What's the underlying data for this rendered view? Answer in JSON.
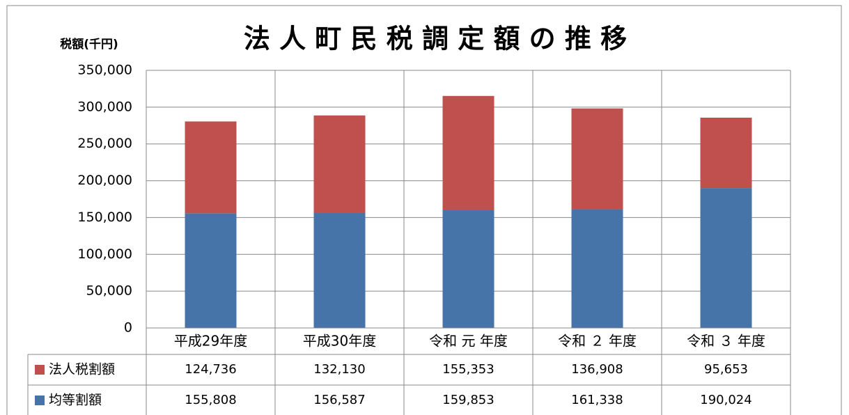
{
  "chart_data": {
    "type": "stacked_bar",
    "title": "法 人 町 民 税 調 定 額 の 推 移",
    "y_label": "税額(千円)",
    "categories": [
      "平成29年度",
      "平成30年度",
      "令和 元 年度",
      "令和 ２ 年度",
      "令和 ３ 年度"
    ],
    "series": [
      {
        "name": "均等割額",
        "color": "#4674a8",
        "values": [
          155808,
          156587,
          159853,
          161338,
          190024
        ],
        "value_labels": [
          "155,808",
          "156,587",
          "159,853",
          "161,338",
          "190,024"
        ]
      },
      {
        "name": "法人税割額",
        "color": "#c0504d",
        "values": [
          124736,
          132130,
          155353,
          136908,
          95653
        ],
        "value_labels": [
          "124,736",
          "132,130",
          "155,353",
          "136,908",
          "95,653"
        ]
      }
    ],
    "ylim": [
      0,
      350000
    ],
    "yticks": [
      0,
      {
        "value": 50000,
        "label": "50,000"
      },
      {
        "value": 100000,
        "label": "100,000"
      },
      {
        "value": 150000,
        "label": "150,000"
      },
      {
        "value": 200000,
        "label": "200,000"
      },
      {
        "value": 250000,
        "label": "250,000"
      },
      {
        "value": 300000,
        "label": "300,000"
      },
      {
        "value": 350000,
        "label": "350,000"
      }
    ],
    "grid": true
  }
}
